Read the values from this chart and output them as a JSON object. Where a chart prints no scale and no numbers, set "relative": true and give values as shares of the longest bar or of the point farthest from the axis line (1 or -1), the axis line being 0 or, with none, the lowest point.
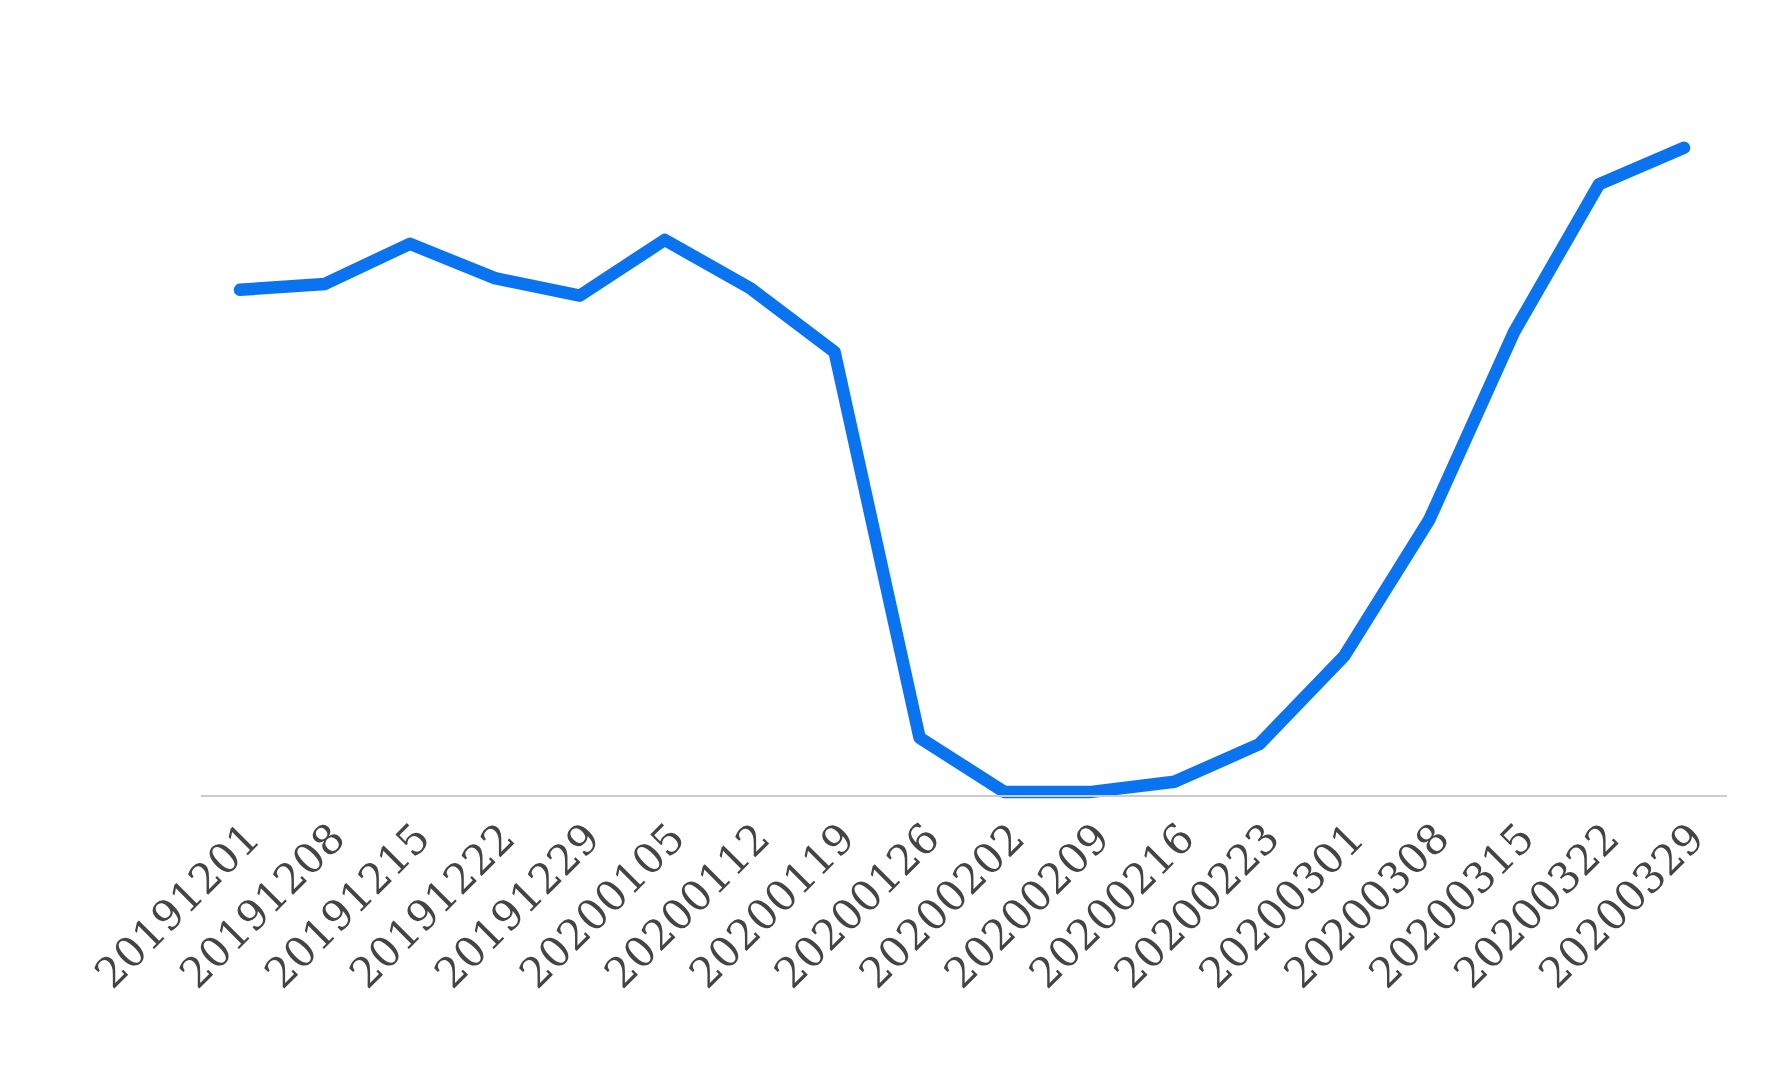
{
  "chart_data": {
    "type": "line",
    "relative": true,
    "color": "#0a74f0",
    "categories": [
      "20191201",
      "20191208",
      "20191215",
      "20191222",
      "20191229",
      "20200105",
      "20200112",
      "20200119",
      "20200126",
      "20200202",
      "20200209",
      "20200216",
      "20200223",
      "20200301",
      "20200308",
      "20200315",
      "20200322",
      "20200329"
    ],
    "values": [
      0.781,
      0.79,
      0.852,
      0.799,
      0.772,
      0.858,
      0.784,
      0.685,
      0.09,
      0.006,
      0.006,
      0.022,
      0.08,
      0.216,
      0.426,
      0.716,
      0.944,
      1.0
    ]
  }
}
